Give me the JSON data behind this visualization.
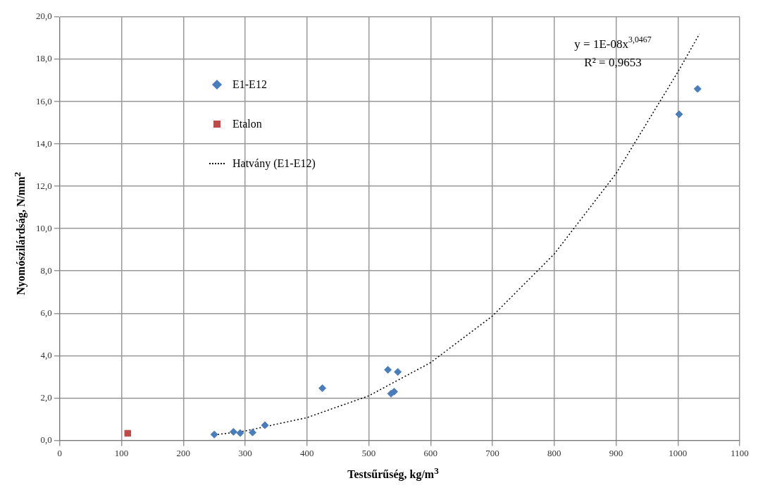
{
  "chart_data": {
    "type": "scatter",
    "xlabel": "Testsűrűség, kg/m$^{3}$",
    "ylabel": "Nyomószilárdság, N/mm$^{2}$",
    "xlim": [
      0,
      1100
    ],
    "xticks": [
      0,
      100,
      200,
      300,
      400,
      500,
      600,
      700,
      800,
      900,
      1000,
      1100
    ],
    "ylim": [
      0,
      20
    ],
    "yticks": [
      {
        "value": 0,
        "label": "0,0"
      },
      {
        "value": 2,
        "label": "2,0"
      },
      {
        "value": 4,
        "label": "4,0"
      },
      {
        "value": 6,
        "label": "6,0"
      },
      {
        "value": 8,
        "label": "8,0"
      },
      {
        "value": 10,
        "label": "10,0"
      },
      {
        "value": 12,
        "label": "12,0"
      },
      {
        "value": 14,
        "label": "14,0"
      },
      {
        "value": 16,
        "label": "16,0"
      },
      {
        "value": 18,
        "label": "18,0"
      },
      {
        "value": 20,
        "label": "20,0"
      }
    ],
    "grid": true,
    "legend": "top left",
    "annotations": [
      "y = 1E-08x$^{3,0467}$",
      "R² = 0,9653"
    ],
    "series": [
      {
        "name": "E1-E12",
        "type": "scatter",
        "marker": "diamond",
        "color": "#4a7ebb",
        "x": [
          250,
          281,
          292,
          312,
          332,
          425,
          531,
          547,
          536,
          541,
          1002,
          1032
        ],
        "values": [
          0.27,
          0.4,
          0.34,
          0.37,
          0.71,
          2.46,
          3.33,
          3.23,
          2.2,
          2.3,
          15.4,
          16.6
        ]
      },
      {
        "name": "Etalon",
        "type": "scatter",
        "marker": "square",
        "color": "#be4b48",
        "x": [
          110
        ],
        "values": [
          0.33
        ]
      },
      {
        "name": "Hatvány (E1-E12)",
        "type": "line",
        "marker": "none",
        "line_style": "dotted",
        "color": "#000000",
        "x": [
          250,
          300,
          400,
          500,
          600,
          700,
          800,
          900,
          1000,
          1035
        ],
        "values": [
          0.25,
          0.44,
          1.07,
          2.1,
          3.67,
          5.87,
          8.8,
          12.6,
          17.4,
          19.2
        ]
      }
    ]
  }
}
